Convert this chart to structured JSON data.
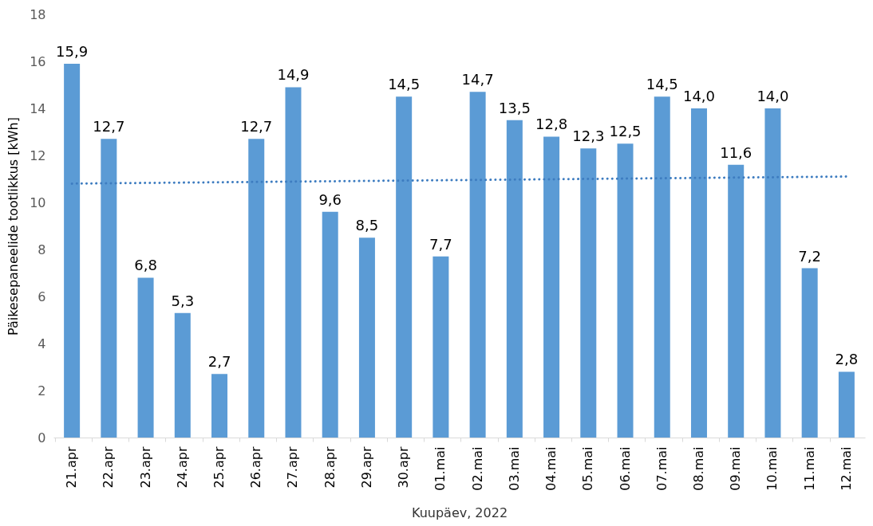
{
  "chart_data": {
    "type": "bar",
    "xlabel": "Kuupäev, 2022",
    "ylabel": "Päikesepaneelide tootlikkus [kWh]",
    "categories": [
      "21.apr",
      "22.apr",
      "23.apr",
      "24.apr",
      "25.apr",
      "26.apr",
      "27.apr",
      "28.apr",
      "29.apr",
      "30.apr",
      "01.mai",
      "02.mai",
      "03.mai",
      "04.mai",
      "05.mai",
      "06.mai",
      "07.mai",
      "08.mai",
      "09.mai",
      "10.mai",
      "11.mai",
      "12.mai"
    ],
    "series": [
      {
        "color": "#5b9bd5",
        "values": [
          15.9,
          12.7,
          6.8,
          5.3,
          2.7,
          12.7,
          14.9,
          9.6,
          8.5,
          14.5,
          7.7,
          14.7,
          13.5,
          12.8,
          12.3,
          12.5,
          14.5,
          14.0,
          11.6,
          14.0,
          7.2,
          2.8
        ],
        "value_labels": [
          "15,9",
          "12,7",
          "6,8",
          "5,3",
          "2,7",
          "12,7",
          "14,9",
          "9,6",
          "8,5",
          "14,5",
          "7,7",
          "14,7",
          "13,5",
          "12,8",
          "12,3",
          "12,5",
          "14,5",
          "14,0",
          "11,6",
          "14,0",
          "7,2",
          "2,8"
        ]
      },
      {
        "type": "line",
        "color": "#3d7cc0",
        "line_style": "dotted",
        "x": [
          "21.apr",
          "12.mai"
        ],
        "values": [
          10.8,
          11.1
        ]
      }
    ],
    "ylim": [
      0,
      18
    ],
    "yticks": [
      0,
      2,
      4,
      6,
      8,
      10,
      12,
      14,
      16,
      18
    ],
    "grid": false
  }
}
